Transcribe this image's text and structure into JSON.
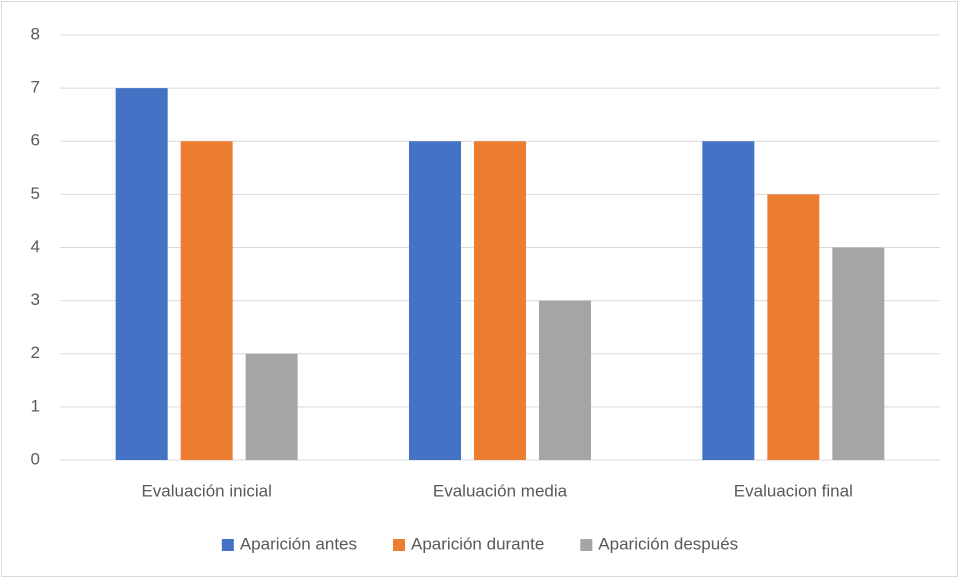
{
  "chart_data": {
    "type": "bar",
    "categories": [
      "Evaluación inicial",
      "Evaluación media",
      "Evaluacion final"
    ],
    "series": [
      {
        "name": "Aparición antes",
        "color": "#4472c4",
        "values": [
          7,
          6,
          6
        ]
      },
      {
        "name": "Aparición durante",
        "color": "#ed7d31",
        "values": [
          6,
          6,
          5
        ]
      },
      {
        "name": "Aparición después",
        "color": "#a5a5a5",
        "values": [
          2,
          3,
          4
        ]
      }
    ],
    "ylim": [
      0,
      8
    ],
    "yticks": [
      0,
      1,
      2,
      3,
      4,
      5,
      6,
      7,
      8
    ],
    "grid": true,
    "legend": "bottom"
  }
}
